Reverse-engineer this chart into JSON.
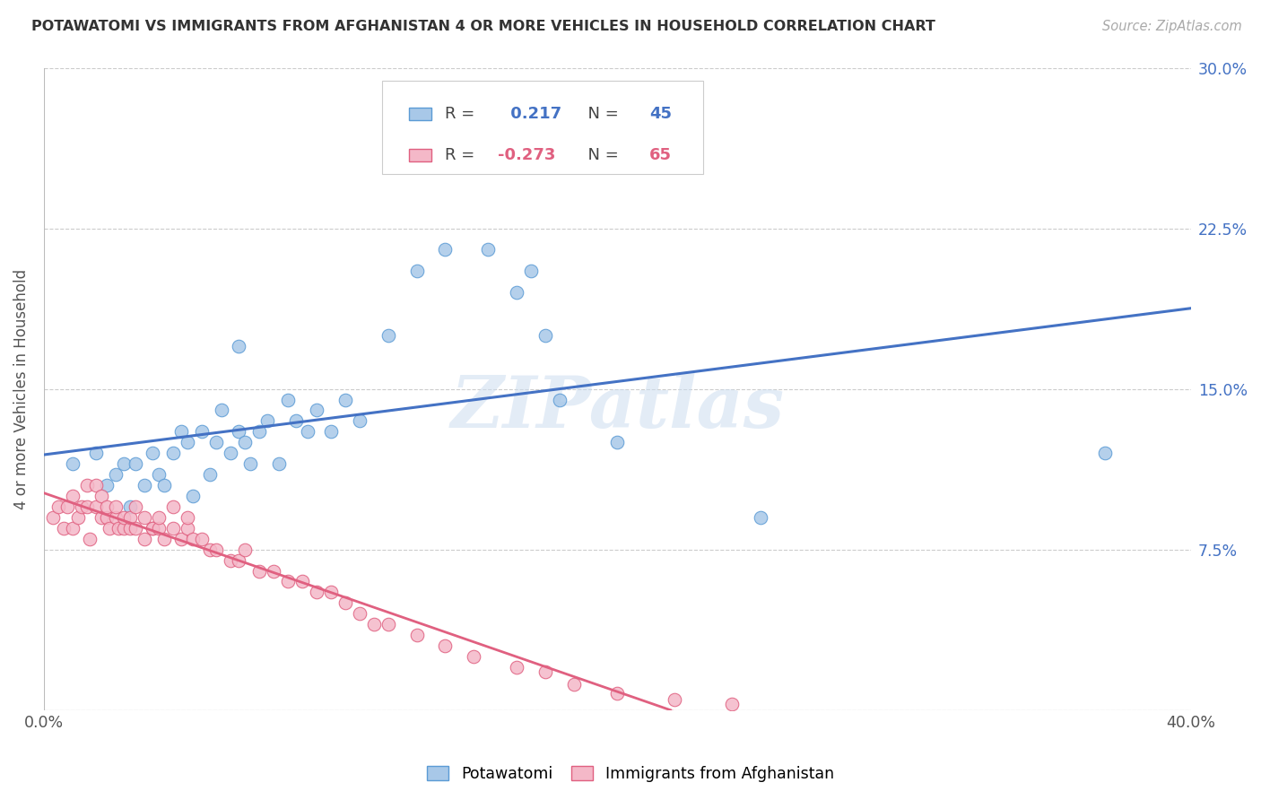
{
  "title": "POTAWATOMI VS IMMIGRANTS FROM AFGHANISTAN 4 OR MORE VEHICLES IN HOUSEHOLD CORRELATION CHART",
  "source": "Source: ZipAtlas.com",
  "ylabel": "4 or more Vehicles in Household",
  "xlim": [
    0.0,
    0.4
  ],
  "ylim": [
    0.0,
    0.3
  ],
  "xticks": [
    0.0,
    0.1,
    0.2,
    0.3,
    0.4
  ],
  "xticklabels": [
    "0.0%",
    "",
    "",
    "",
    "40.0%"
  ],
  "yticks": [
    0.0,
    0.075,
    0.15,
    0.225,
    0.3
  ],
  "yticklabels": [
    "",
    "7.5%",
    "15.0%",
    "22.5%",
    "30.0%"
  ],
  "blue_R": 0.217,
  "blue_N": 45,
  "pink_R": -0.273,
  "pink_N": 65,
  "legend_label1": "Potawatomi",
  "legend_label2": "Immigrants from Afghanistan",
  "blue_color": "#a8c8e8",
  "pink_color": "#f4b8c8",
  "blue_edge_color": "#5b9bd5",
  "pink_edge_color": "#e06080",
  "blue_line_color": "#4472c4",
  "pink_line_color": "#e06080",
  "watermark": "ZIPatlas",
  "blue_x": [
    0.01,
    0.018,
    0.022,
    0.025,
    0.028,
    0.03,
    0.032,
    0.035,
    0.038,
    0.04,
    0.042,
    0.045,
    0.048,
    0.05,
    0.052,
    0.055,
    0.058,
    0.06,
    0.062,
    0.065,
    0.068,
    0.07,
    0.072,
    0.075,
    0.078,
    0.082,
    0.085,
    0.088,
    0.092,
    0.095,
    0.1,
    0.105,
    0.11,
    0.12,
    0.13,
    0.14,
    0.155,
    0.165,
    0.17,
    0.175,
    0.18,
    0.2,
    0.25,
    0.37,
    0.068
  ],
  "blue_y": [
    0.115,
    0.12,
    0.105,
    0.11,
    0.115,
    0.095,
    0.115,
    0.105,
    0.12,
    0.11,
    0.105,
    0.12,
    0.13,
    0.125,
    0.1,
    0.13,
    0.11,
    0.125,
    0.14,
    0.12,
    0.13,
    0.125,
    0.115,
    0.13,
    0.135,
    0.115,
    0.145,
    0.135,
    0.13,
    0.14,
    0.13,
    0.145,
    0.135,
    0.175,
    0.205,
    0.215,
    0.215,
    0.195,
    0.205,
    0.175,
    0.145,
    0.125,
    0.09,
    0.12,
    0.17
  ],
  "pink_x": [
    0.003,
    0.005,
    0.007,
    0.008,
    0.01,
    0.01,
    0.012,
    0.013,
    0.015,
    0.015,
    0.016,
    0.018,
    0.018,
    0.02,
    0.02,
    0.022,
    0.022,
    0.023,
    0.025,
    0.025,
    0.026,
    0.028,
    0.028,
    0.03,
    0.03,
    0.032,
    0.032,
    0.035,
    0.035,
    0.038,
    0.038,
    0.04,
    0.04,
    0.042,
    0.045,
    0.045,
    0.048,
    0.05,
    0.05,
    0.052,
    0.055,
    0.058,
    0.06,
    0.065,
    0.068,
    0.07,
    0.075,
    0.08,
    0.085,
    0.09,
    0.095,
    0.1,
    0.105,
    0.11,
    0.115,
    0.12,
    0.13,
    0.14,
    0.15,
    0.165,
    0.175,
    0.185,
    0.2,
    0.22,
    0.24
  ],
  "pink_y": [
    0.09,
    0.095,
    0.085,
    0.095,
    0.085,
    0.1,
    0.09,
    0.095,
    0.095,
    0.105,
    0.08,
    0.095,
    0.105,
    0.09,
    0.1,
    0.09,
    0.095,
    0.085,
    0.09,
    0.095,
    0.085,
    0.085,
    0.09,
    0.085,
    0.09,
    0.085,
    0.095,
    0.08,
    0.09,
    0.085,
    0.085,
    0.085,
    0.09,
    0.08,
    0.085,
    0.095,
    0.08,
    0.085,
    0.09,
    0.08,
    0.08,
    0.075,
    0.075,
    0.07,
    0.07,
    0.075,
    0.065,
    0.065,
    0.06,
    0.06,
    0.055,
    0.055,
    0.05,
    0.045,
    0.04,
    0.04,
    0.035,
    0.03,
    0.025,
    0.02,
    0.018,
    0.012,
    0.008,
    0.005,
    0.003
  ]
}
